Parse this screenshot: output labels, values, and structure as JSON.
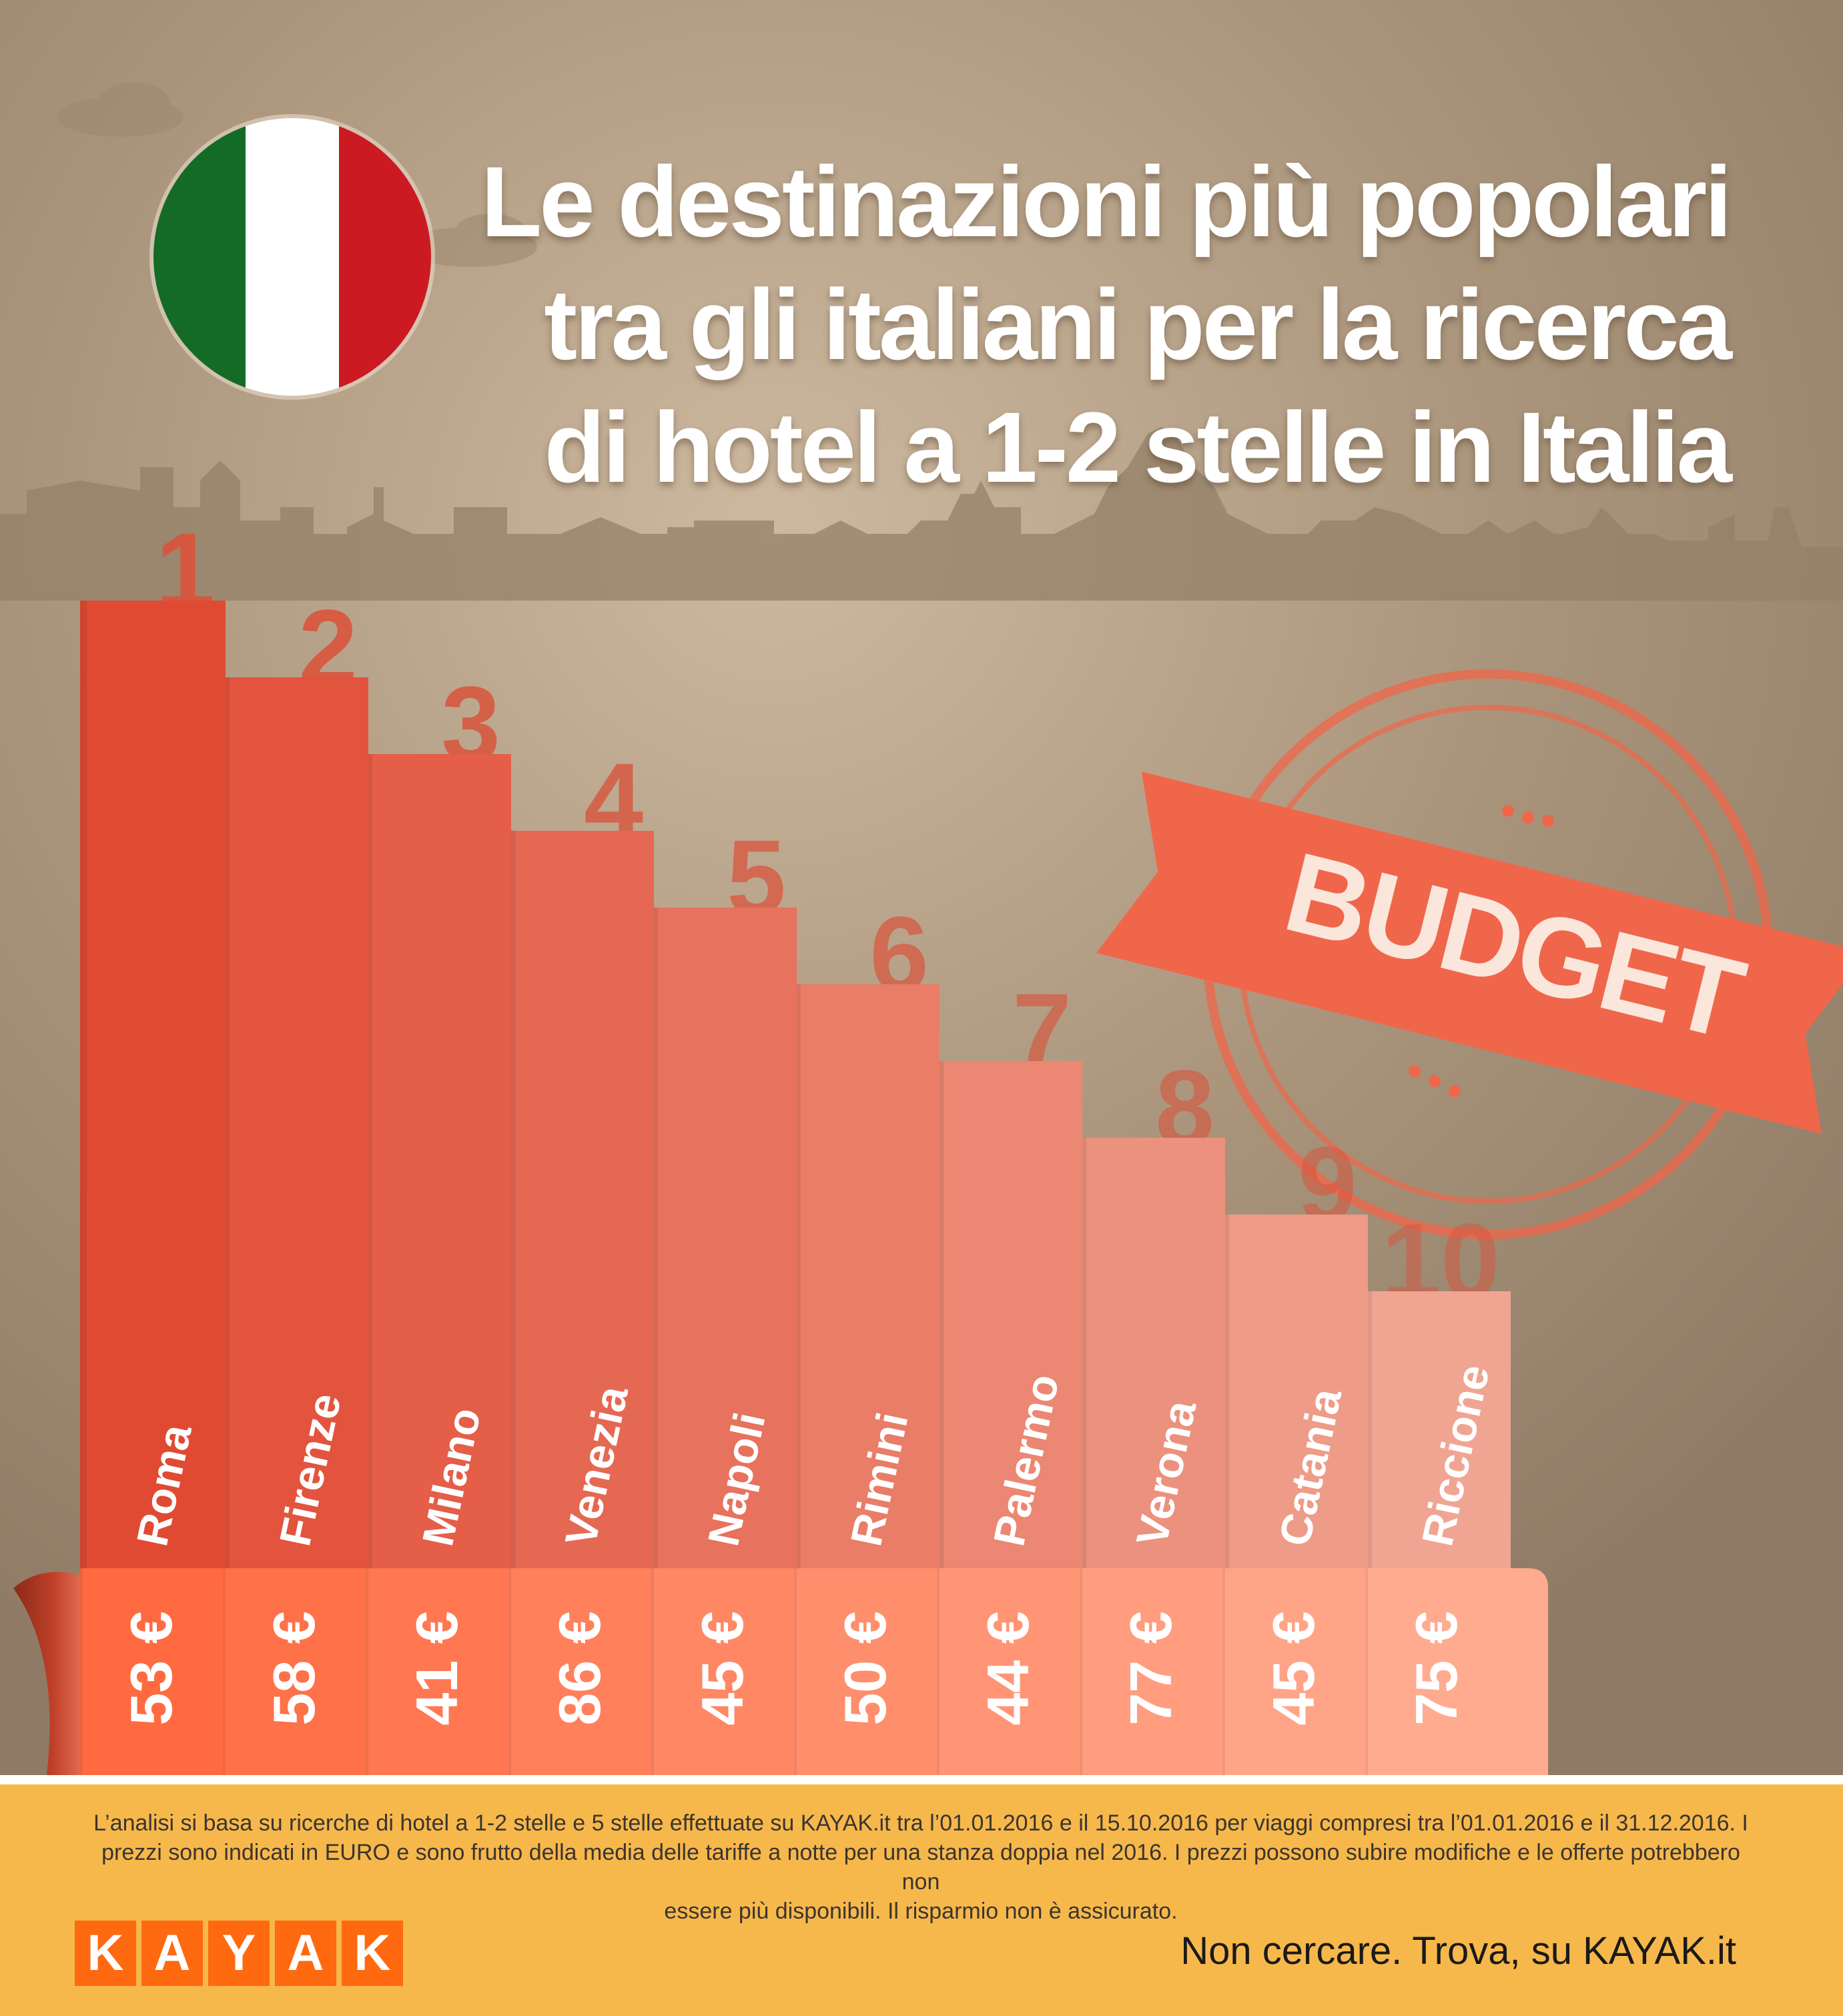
{
  "title": {
    "lines": [
      "Le destinazioni più popolari",
      "tra gli italiani per la ricerca",
      "di hotel a 1-2 stelle in Italia"
    ]
  },
  "stamp": {
    "label": "BUDGET"
  },
  "colors": {
    "bar_top": "#e04a33",
    "bar_bottom": "#f0a592",
    "price_top": "#ff6a40",
    "price_bottom": "#ffab90",
    "background": "#a28e76",
    "stamp": "#f0664a",
    "footer": "#f7b84b",
    "logo": "#ff690f"
  },
  "chart_data": {
    "type": "bar",
    "title": "Le destinazioni più popolari tra gli italiani per la ricerca di hotel a 1-2 stelle in Italia",
    "categories": [
      "Roma",
      "Firenze",
      "Milano",
      "Venezia",
      "Napoli",
      "Rimini",
      "Palermo",
      "Verona",
      "Catania",
      "Riccione"
    ],
    "ranks": [
      "1",
      "2",
      "3",
      "4",
      "5",
      "6",
      "7",
      "8",
      "9",
      "10"
    ],
    "values": [
      53,
      58,
      41,
      86,
      45,
      50,
      44,
      77,
      45,
      75
    ],
    "value_labels": [
      "53 €",
      "58 €",
      "41 €",
      "86 €",
      "45 €",
      "50 €",
      "44 €",
      "77 €",
      "45 €",
      "75 €"
    ],
    "unit": "€"
  },
  "footer": {
    "note_lines": [
      "L’analisi si basa su ricerche di hotel a 1-2 stelle e 5 stelle effettuate su KAYAK.it tra l’01.01.2016 e il 15.10.2016 per viaggi compresi tra l’01.01.2016 e il 31.12.2016. I",
      "prezzi sono indicati in EURO e sono frutto della media delle tariffe a notte per una stanza doppia nel 2016. I prezzi possono subire modifiche e le offerte potrebbero non",
      "essere più disponibili. Il risparmio non è assicurato."
    ],
    "logo_letters": [
      "K",
      "A",
      "Y",
      "A",
      "K"
    ],
    "tagline": "Non cercare. Trova, su KAYAK.it"
  }
}
